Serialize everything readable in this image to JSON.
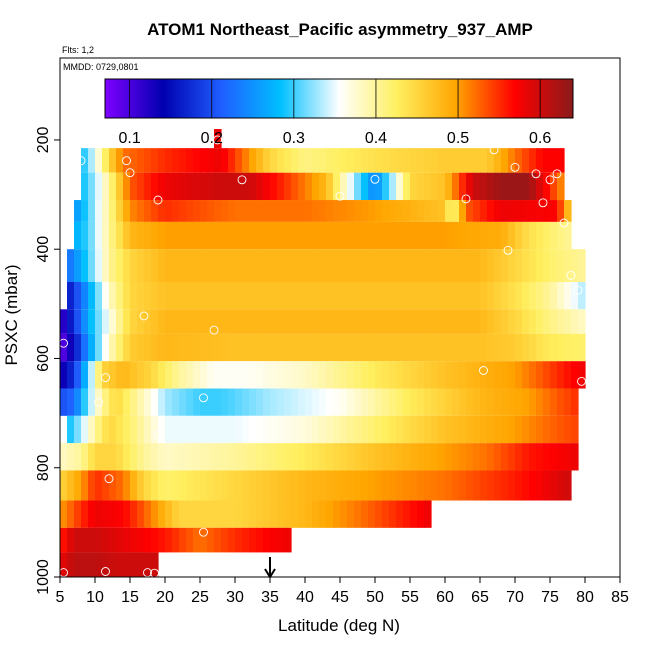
{
  "chart_data": {
    "type": "heatmap",
    "title": "ATOM1 Northeast_Pacific asymmetry_937_AMP",
    "flights_note": "Flts: 1,2",
    "date_note": "MMDD: 0729,0801",
    "xlabel": "Latitude (deg N)",
    "ylabel": "PSXC (mbar)",
    "xlim": [
      5,
      85
    ],
    "ylim": [
      1000,
      50
    ],
    "x_ticks": [
      "5",
      "10",
      "15",
      "20",
      "25",
      "30",
      "35",
      "40",
      "45",
      "50",
      "55",
      "60",
      "65",
      "70",
      "75",
      "80",
      "85"
    ],
    "y_ticks": [
      "200",
      "400",
      "600",
      "800",
      "1000"
    ],
    "colorbar": {
      "range": [
        0.07,
        0.64
      ],
      "ticks": [
        "0.1",
        "0.2",
        "0.3",
        "0.4",
        "0.5",
        "0.6"
      ],
      "colors": [
        "#7f00ff",
        "#0000b0",
        "#1f5fff",
        "#00bfff",
        "#ffffff",
        "#ffef5f",
        "#ffa500",
        "#ff0000",
        "#8b1a1a"
      ]
    },
    "arrow_marker": {
      "latitude": 35,
      "label": "35"
    },
    "rows": [
      {
        "p_top": 180,
        "p_bot": 215,
        "x_start": 27,
        "x_end": 28,
        "nodes": [
          [
            27,
            0.58
          ],
          [
            28,
            0.58
          ]
        ]
      },
      {
        "p_top": 215,
        "p_bot": 260,
        "x_start": 8,
        "x_end": 77,
        "nodes": [
          [
            8,
            0.28
          ],
          [
            10,
            0.35
          ],
          [
            12,
            0.45
          ],
          [
            14,
            0.52
          ],
          [
            20,
            0.55
          ],
          [
            28,
            0.58
          ],
          [
            35,
            0.45
          ],
          [
            40,
            0.41
          ],
          [
            50,
            0.44
          ],
          [
            60,
            0.46
          ],
          [
            66,
            0.46
          ],
          [
            70,
            0.52
          ],
          [
            74,
            0.57
          ],
          [
            77,
            0.57
          ]
        ]
      },
      {
        "p_top": 260,
        "p_bot": 310,
        "x_start": 8,
        "x_end": 77,
        "nodes": [
          [
            8,
            0.28
          ],
          [
            10,
            0.33
          ],
          [
            12,
            0.4
          ],
          [
            15,
            0.53
          ],
          [
            20,
            0.58
          ],
          [
            28,
            0.6
          ],
          [
            32,
            0.6
          ],
          [
            37,
            0.55
          ],
          [
            43,
            0.48
          ],
          [
            47,
            0.33
          ],
          [
            50,
            0.24
          ],
          [
            53,
            0.35
          ],
          [
            55,
            0.45
          ],
          [
            60,
            0.47
          ],
          [
            64,
            0.6
          ],
          [
            68,
            0.63
          ],
          [
            72,
            0.63
          ],
          [
            74,
            0.58
          ],
          [
            77,
            0.5
          ]
        ]
      },
      {
        "p_top": 310,
        "p_bot": 350,
        "x_start": 7,
        "x_end": 78,
        "nodes": [
          [
            7,
            0.25
          ],
          [
            9,
            0.3
          ],
          [
            12,
            0.4
          ],
          [
            15,
            0.51
          ],
          [
            20,
            0.55
          ],
          [
            30,
            0.52
          ],
          [
            40,
            0.52
          ],
          [
            50,
            0.5
          ],
          [
            60,
            0.47
          ],
          [
            61,
            0.4
          ],
          [
            63,
            0.53
          ],
          [
            68,
            0.58
          ],
          [
            76,
            0.57
          ],
          [
            78,
            0.45
          ]
        ]
      },
      {
        "p_top": 350,
        "p_bot": 400,
        "x_start": 7,
        "x_end": 78,
        "nodes": [
          [
            7,
            0.27
          ],
          [
            9,
            0.3
          ],
          [
            12,
            0.4
          ],
          [
            15,
            0.48
          ],
          [
            20,
            0.5
          ],
          [
            30,
            0.5
          ],
          [
            40,
            0.5
          ],
          [
            60,
            0.5
          ],
          [
            68,
            0.49
          ],
          [
            72,
            0.44
          ],
          [
            75,
            0.42
          ],
          [
            78,
            0.4
          ]
        ]
      },
      {
        "p_top": 400,
        "p_bot": 460,
        "x_start": 6,
        "x_end": 80,
        "nodes": [
          [
            6,
            0.22
          ],
          [
            8,
            0.27
          ],
          [
            10,
            0.33
          ],
          [
            12,
            0.4
          ],
          [
            15,
            0.45
          ],
          [
            20,
            0.48
          ],
          [
            30,
            0.48
          ],
          [
            50,
            0.48
          ],
          [
            65,
            0.48
          ],
          [
            70,
            0.45
          ],
          [
            75,
            0.42
          ],
          [
            80,
            0.4
          ]
        ]
      },
      {
        "p_top": 460,
        "p_bot": 510,
        "x_start": 6,
        "x_end": 80,
        "nodes": [
          [
            6,
            0.15
          ],
          [
            8,
            0.22
          ],
          [
            10,
            0.3
          ],
          [
            12,
            0.38
          ],
          [
            15,
            0.45
          ],
          [
            20,
            0.47
          ],
          [
            30,
            0.47
          ],
          [
            50,
            0.47
          ],
          [
            65,
            0.47
          ],
          [
            70,
            0.44
          ],
          [
            75,
            0.4
          ],
          [
            80,
            0.33
          ]
        ]
      },
      {
        "p_top": 510,
        "p_bot": 555,
        "x_start": 5,
        "x_end": 80,
        "nodes": [
          [
            5,
            0.1
          ],
          [
            7,
            0.18
          ],
          [
            9,
            0.27
          ],
          [
            12,
            0.36
          ],
          [
            15,
            0.45
          ],
          [
            20,
            0.48
          ],
          [
            30,
            0.48
          ],
          [
            50,
            0.48
          ],
          [
            65,
            0.48
          ],
          [
            70,
            0.45
          ],
          [
            75,
            0.41
          ],
          [
            80,
            0.38
          ]
        ]
      },
      {
        "p_top": 555,
        "p_bot": 605,
        "x_start": 5,
        "x_end": 80,
        "nodes": [
          [
            5,
            0.08
          ],
          [
            7,
            0.15
          ],
          [
            9,
            0.25
          ],
          [
            12,
            0.38
          ],
          [
            15,
            0.46
          ],
          [
            20,
            0.48
          ],
          [
            30,
            0.47
          ],
          [
            50,
            0.47
          ],
          [
            65,
            0.47
          ],
          [
            70,
            0.46
          ],
          [
            75,
            0.43
          ],
          [
            80,
            0.42
          ]
        ]
      },
      {
        "p_top": 605,
        "p_bot": 655,
        "x_start": 5,
        "x_end": 80,
        "nodes": [
          [
            5,
            0.12
          ],
          [
            7,
            0.18
          ],
          [
            9,
            0.3
          ],
          [
            11,
            0.45
          ],
          [
            14,
            0.48
          ],
          [
            18,
            0.45
          ],
          [
            22,
            0.4
          ],
          [
            27,
            0.36
          ],
          [
            32,
            0.36
          ],
          [
            40,
            0.38
          ],
          [
            50,
            0.43
          ],
          [
            60,
            0.47
          ],
          [
            70,
            0.5
          ],
          [
            76,
            0.55
          ],
          [
            80,
            0.58
          ]
        ]
      },
      {
        "p_top": 655,
        "p_bot": 705,
        "x_start": 5,
        "x_end": 79,
        "nodes": [
          [
            5,
            0.2
          ],
          [
            7,
            0.22
          ],
          [
            9,
            0.32
          ],
          [
            11,
            0.4
          ],
          [
            13,
            0.45
          ],
          [
            16,
            0.4
          ],
          [
            20,
            0.33
          ],
          [
            25,
            0.3
          ],
          [
            28,
            0.3
          ],
          [
            35,
            0.33
          ],
          [
            45,
            0.36
          ],
          [
            55,
            0.43
          ],
          [
            65,
            0.48
          ],
          [
            72,
            0.5
          ],
          [
            76,
            0.53
          ],
          [
            79,
            0.55
          ]
        ]
      },
      {
        "p_top": 705,
        "p_bot": 755,
        "x_start": 6,
        "x_end": 79,
        "nodes": [
          [
            6,
            0.28
          ],
          [
            8,
            0.33
          ],
          [
            10,
            0.4
          ],
          [
            12,
            0.45
          ],
          [
            15,
            0.42
          ],
          [
            20,
            0.35
          ],
          [
            30,
            0.35
          ],
          [
            40,
            0.37
          ],
          [
            50,
            0.42
          ],
          [
            60,
            0.47
          ],
          [
            70,
            0.5
          ],
          [
            76,
            0.53
          ],
          [
            79,
            0.54
          ]
        ]
      },
      {
        "p_top": 755,
        "p_bot": 805,
        "x_start": 5,
        "x_end": 79,
        "nodes": [
          [
            5,
            0.38
          ],
          [
            8,
            0.4
          ],
          [
            10,
            0.45
          ],
          [
            13,
            0.45
          ],
          [
            17,
            0.4
          ],
          [
            20,
            0.38
          ],
          [
            30,
            0.4
          ],
          [
            40,
            0.43
          ],
          [
            50,
            0.47
          ],
          [
            60,
            0.5
          ],
          [
            66,
            0.52
          ],
          [
            72,
            0.56
          ],
          [
            79,
            0.58
          ]
        ]
      },
      {
        "p_top": 805,
        "p_bot": 860,
        "x_start": 5,
        "x_end": 78,
        "nodes": [
          [
            5,
            0.45
          ],
          [
            8,
            0.5
          ],
          [
            10,
            0.55
          ],
          [
            14,
            0.52
          ],
          [
            17,
            0.45
          ],
          [
            20,
            0.42
          ],
          [
            30,
            0.45
          ],
          [
            40,
            0.48
          ],
          [
            50,
            0.5
          ],
          [
            60,
            0.52
          ],
          [
            68,
            0.55
          ],
          [
            73,
            0.57
          ],
          [
            78,
            0.6
          ]
        ]
      },
      {
        "p_top": 860,
        "p_bot": 910,
        "x_start": 5,
        "x_end": 58,
        "nodes": [
          [
            5,
            0.5
          ],
          [
            8,
            0.55
          ],
          [
            10,
            0.58
          ],
          [
            14,
            0.57
          ],
          [
            17,
            0.53
          ],
          [
            22,
            0.45
          ],
          [
            30,
            0.45
          ],
          [
            40,
            0.48
          ],
          [
            48,
            0.52
          ],
          [
            53,
            0.55
          ],
          [
            58,
            0.58
          ]
        ]
      },
      {
        "p_top": 910,
        "p_bot": 955,
        "x_start": 5,
        "x_end": 38,
        "nodes": [
          [
            5,
            0.55
          ],
          [
            7,
            0.6
          ],
          [
            10,
            0.6
          ],
          [
            15,
            0.58
          ],
          [
            20,
            0.56
          ],
          [
            25,
            0.52
          ],
          [
            30,
            0.55
          ],
          [
            35,
            0.57
          ],
          [
            38,
            0.58
          ]
        ]
      },
      {
        "p_top": 955,
        "p_bot": 1000,
        "x_start": 5,
        "x_end": 19,
        "nodes": [
          [
            5,
            0.58
          ],
          [
            7,
            0.61
          ],
          [
            10,
            0.61
          ],
          [
            13,
            0.6
          ],
          [
            16,
            0.6
          ],
          [
            19,
            0.6
          ]
        ]
      }
    ],
    "obs_points": [
      [
        27.5,
        200
      ],
      [
        8,
        238
      ],
      [
        14.5,
        238
      ],
      [
        67,
        218
      ],
      [
        70,
        250
      ],
      [
        73,
        262
      ],
      [
        76,
        262
      ],
      [
        75,
        273
      ],
      [
        74,
        315
      ],
      [
        31,
        273
      ],
      [
        15,
        260
      ],
      [
        19,
        310
      ],
      [
        45,
        303
      ],
      [
        50,
        272
      ],
      [
        63,
        308
      ],
      [
        77,
        352
      ],
      [
        69,
        402
      ],
      [
        78,
        448
      ],
      [
        79,
        475
      ],
      [
        17,
        522
      ],
      [
        27,
        548
      ],
      [
        5.5,
        572
      ],
      [
        11.5,
        635
      ],
      [
        65.5,
        622
      ],
      [
        79.5,
        642
      ],
      [
        10.5,
        680
      ],
      [
        25.5,
        672
      ],
      [
        19,
        740
      ],
      [
        12,
        820
      ],
      [
        79,
        850
      ],
      [
        25.5,
        918
      ],
      [
        5.5,
        992
      ],
      [
        11.5,
        990
      ],
      [
        17.5,
        992
      ],
      [
        18.5,
        993
      ]
    ]
  }
}
